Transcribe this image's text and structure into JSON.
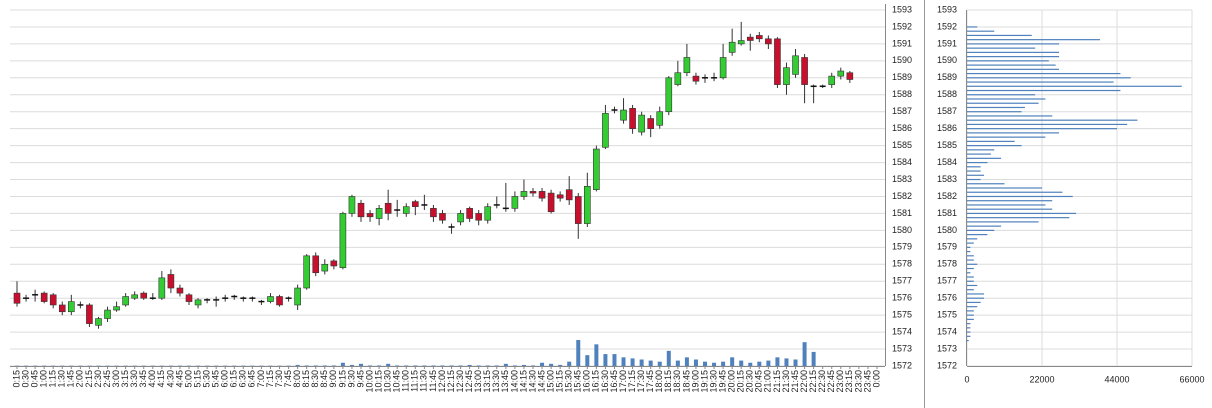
{
  "chart_data": [
    {
      "type": "candlestick",
      "x": [
        "0:15",
        "0:30",
        "0:45",
        "1:00",
        "1:15",
        "1:30",
        "1:45",
        "2:00",
        "2:15",
        "2:30",
        "2:45",
        "3:00",
        "3:15",
        "3:30",
        "3:45",
        "4:00",
        "4:15",
        "4:30",
        "4:45",
        "5:00",
        "5:15",
        "5:30",
        "5:45",
        "6:00",
        "6:15",
        "6:30",
        "6:45",
        "7:00",
        "7:15",
        "7:30",
        "7:45",
        "8:00",
        "8:15",
        "8:30",
        "8:45",
        "9:00",
        "9:15",
        "9:30",
        "9:45",
        "10:00",
        "10:15",
        "10:30",
        "10:45",
        "11:00",
        "11:15",
        "11:30",
        "11:45",
        "12:00",
        "12:15",
        "12:30",
        "12:45",
        "13:00",
        "13:15",
        "13:30",
        "13:45",
        "14:00",
        "14:15",
        "14:30",
        "14:45",
        "15:00",
        "15:15",
        "15:30",
        "15:45",
        "16:00",
        "16:15",
        "16:30",
        "16:45",
        "17:00",
        "17:15",
        "17:30",
        "17:45",
        "18:00",
        "18:15",
        "18:30",
        "18:45",
        "19:00",
        "19:15",
        "19:30",
        "19:45",
        "20:00",
        "20:15",
        "20:30",
        "20:45",
        "21:00",
        "21:15",
        "21:30",
        "21:45",
        "22:00",
        "22:15",
        "22:30",
        "22:45",
        "23:00",
        "23:15",
        "23:30",
        "23:45",
        "0:00"
      ],
      "open": [
        1576.3,
        1576,
        1576.2,
        1576.3,
        1576.2,
        1575.6,
        1575.2,
        1575.6,
        1575.6,
        1574.4,
        1574.8,
        1575.3,
        1575.6,
        1576,
        1576.3,
        1576,
        1576,
        1577.4,
        1576.6,
        1576.2,
        1575.6,
        1575.9,
        1575.9,
        1576,
        1576.1,
        1576,
        1576,
        1575.8,
        1575.8,
        1576.1,
        1576,
        1575.6,
        1576.6,
        1578.5,
        1577.6,
        1578.2,
        1577.8,
        1581,
        1581.6,
        1581,
        1580.7,
        1581.6,
        1581.2,
        1581,
        1581.7,
        1581.5,
        1581.3,
        1581,
        1580.2,
        1580.5,
        1581.3,
        1581,
        1580.6,
        1581.5,
        1581.3,
        1581.3,
        1582,
        1582.3,
        1582.3,
        1582.2,
        1582.1,
        1582.4,
        1582,
        1580.4,
        1582.4,
        1584.9,
        1587.1,
        1586.5,
        1587.2,
        1585.8,
        1586.6,
        1586.2,
        1587,
        1588.6,
        1589.3,
        1589.1,
        1589,
        1589,
        1589,
        1590.5,
        1591,
        1591.4,
        1591.5,
        1591.3,
        1591.3,
        1588.6,
        1589.2,
        1590.2,
        1588.5,
        1588.5,
        1588.6,
        1589.1,
        1589.3,
        null,
        null,
        null
      ],
      "high": [
        1577,
        1576.2,
        1576.5,
        1576.4,
        1576.3,
        1575.8,
        1576.2,
        1575.8,
        1575.7,
        1574.9,
        1575.5,
        1575.8,
        1576.3,
        1576.4,
        1576.4,
        1576.3,
        1577.6,
        1577.7,
        1576.8,
        1576.3,
        1576,
        1576,
        1576.1,
        1576.2,
        1576.2,
        1576.1,
        1576.1,
        1575.9,
        1576.3,
        1576.2,
        1576.1,
        1576.8,
        1578.6,
        1578.7,
        1578.3,
        1578.3,
        1581.1,
        1582.1,
        1581.8,
        1581.2,
        1581.5,
        1582.4,
        1581.8,
        1581.6,
        1581.8,
        1582.1,
        1581.5,
        1581.2,
        1580.4,
        1581.2,
        1581.4,
        1581.2,
        1581.6,
        1582,
        1582.8,
        1582.3,
        1583,
        1582.5,
        1582.5,
        1582.4,
        1582.3,
        1583.2,
        1582.2,
        1583.4,
        1585,
        1587.4,
        1587.3,
        1587.8,
        1587.4,
        1587,
        1586.8,
        1587.3,
        1589.1,
        1590,
        1591,
        1589.3,
        1589.2,
        1589.3,
        1591,
        1591.9,
        1592.3,
        1591.6,
        1591.7,
        1591.5,
        1591.4,
        1589.9,
        1590.7,
        1590.4,
        1588.6,
        1588.6,
        1589.3,
        1589.6,
        1589.4,
        null,
        null,
        null
      ],
      "low": [
        1575.5,
        1575.8,
        1575.8,
        1575.7,
        1575.4,
        1575,
        1575,
        1575.4,
        1574.3,
        1574.2,
        1574.6,
        1575.2,
        1575.5,
        1575.9,
        1575.9,
        1575.9,
        1575.9,
        1576.3,
        1576.1,
        1575.6,
        1575.4,
        1575.7,
        1575.5,
        1575.8,
        1575.9,
        1575.8,
        1575.8,
        1575.6,
        1575.7,
        1575.5,
        1575.8,
        1575.3,
        1576.5,
        1577.3,
        1577.4,
        1577.7,
        1577.7,
        1580.8,
        1580.5,
        1580.5,
        1580.3,
        1580.6,
        1580.8,
        1580.8,
        1580.9,
        1581.2,
        1580.5,
        1580.4,
        1579.8,
        1580.3,
        1580.5,
        1580.3,
        1580.4,
        1581.3,
        1581.1,
        1581.1,
        1581.8,
        1582,
        1581.7,
        1581,
        1581.7,
        1581.5,
        1579.5,
        1580.2,
        1582.3,
        1584.8,
        1586.9,
        1586.3,
        1585.7,
        1585.6,
        1585.5,
        1586,
        1586.8,
        1588.5,
        1589.1,
        1588.6,
        1588.7,
        1588.8,
        1588.9,
        1590.3,
        1590.9,
        1590.6,
        1591.1,
        1590.7,
        1588.4,
        1588,
        1589,
        1587.5,
        1587.5,
        1588.4,
        1588.4,
        1588.9,
        1588.7,
        null,
        null,
        null
      ],
      "close": [
        1575.7,
        1576,
        1576.2,
        1575.8,
        1575.6,
        1575.2,
        1575.8,
        1575.6,
        1574.5,
        1574.8,
        1575.3,
        1575.5,
        1576.1,
        1576.2,
        1576,
        1576,
        1577.2,
        1576.6,
        1576.3,
        1575.8,
        1575.9,
        1575.9,
        1575.9,
        1576,
        1576.1,
        1576,
        1576,
        1575.8,
        1576.1,
        1575.6,
        1576,
        1576.6,
        1578.5,
        1577.5,
        1578,
        1577.9,
        1581,
        1582,
        1580.8,
        1580.8,
        1581.3,
        1581,
        1581.2,
        1581.4,
        1581.4,
        1581.5,
        1580.8,
        1580.6,
        1580.2,
        1581,
        1580.7,
        1580.6,
        1581.4,
        1581.5,
        1581.3,
        1582,
        1582.3,
        1582.2,
        1581.9,
        1581.1,
        1581.9,
        1581.8,
        1580.4,
        1582.6,
        1584.8,
        1586.9,
        1587.1,
        1587.1,
        1586,
        1586.8,
        1586,
        1587,
        1589,
        1589.3,
        1590.2,
        1588.8,
        1589,
        1589,
        1590.2,
        1591.1,
        1591.2,
        1591.2,
        1591.3,
        1591,
        1588.6,
        1589.6,
        1590.3,
        1588.6,
        1588.5,
        1588.5,
        1589.1,
        1589.4,
        1588.9,
        null,
        null,
        null
      ],
      "volume": [
        0.3,
        0.3,
        0.3,
        0.3,
        0.3,
        0.3,
        0.3,
        0.3,
        0.3,
        0.3,
        0.3,
        0.3,
        0.3,
        0.3,
        0.3,
        0.3,
        0.3,
        0.3,
        0.3,
        0.3,
        0.3,
        0.3,
        0.3,
        0.3,
        0.3,
        0.3,
        0.3,
        0.3,
        0.3,
        0.3,
        0.3,
        1,
        0.5,
        0.5,
        0.5,
        0.5,
        3,
        1,
        2,
        0.5,
        0.5,
        2,
        0.5,
        0.5,
        0.5,
        0.5,
        0.5,
        0.5,
        0.5,
        0.5,
        1,
        0.5,
        0.5,
        0.5,
        2,
        0.5,
        1,
        0.5,
        3,
        2,
        1,
        4,
        24,
        10,
        20,
        11,
        11,
        8,
        7,
        6,
        5,
        4,
        14,
        5,
        8,
        6,
        4,
        3,
        4,
        8,
        5,
        3,
        4,
        5,
        8,
        7,
        6,
        22,
        13,
        null,
        null,
        null,
        null,
        null,
        null,
        null
      ],
      "ylim": [
        1572,
        1593
      ],
      "yticks": [
        1572,
        1573,
        1574,
        1575,
        1576,
        1577,
        1578,
        1579,
        1580,
        1581,
        1582,
        1583,
        1584,
        1585,
        1586,
        1587,
        1588,
        1589,
        1590,
        1591,
        1592,
        1593
      ],
      "grid": true,
      "up_color": "#33cc33",
      "down_color": "#c8102e",
      "volume_color": "#4f81bd"
    },
    {
      "type": "hbar",
      "y": [
        1592,
        1591.75,
        1591.5,
        1591.25,
        1591,
        1590.75,
        1590.5,
        1590.25,
        1590,
        1589.75,
        1589.5,
        1589.25,
        1589,
        1588.75,
        1588.5,
        1588.25,
        1588,
        1587.75,
        1587.5,
        1587.25,
        1587,
        1586.75,
        1586.5,
        1586.25,
        1586,
        1585.75,
        1585.5,
        1585.25,
        1585,
        1584.75,
        1584.5,
        1584.25,
        1584,
        1583.75,
        1583.5,
        1583.25,
        1583,
        1582.75,
        1582.5,
        1582.25,
        1582,
        1581.75,
        1581.5,
        1581.25,
        1581,
        1580.75,
        1580.5,
        1580.25,
        1580,
        1579.75,
        1579.5,
        1579.25,
        1579,
        1578.75,
        1578.5,
        1578.25,
        1578,
        1577.75,
        1577.5,
        1577.25,
        1577,
        1576.75,
        1576.5,
        1576.25,
        1576,
        1575.75,
        1575.5,
        1575.25,
        1575,
        1574.75,
        1574.5,
        1574.25,
        1574,
        1573.75,
        1573.5
      ],
      "values": [
        3000,
        8000,
        19000,
        39000,
        27000,
        20000,
        27000,
        27000,
        24000,
        26000,
        27000,
        45000,
        48000,
        43000,
        63000,
        45000,
        20000,
        23000,
        21000,
        17000,
        16000,
        25000,
        50000,
        47000,
        44000,
        27000,
        23000,
        14000,
        16000,
        8000,
        7000,
        10000,
        6000,
        4000,
        4000,
        5000,
        4000,
        11000,
        22000,
        28000,
        31000,
        25000,
        23000,
        25000,
        32000,
        30000,
        21000,
        10000,
        8000,
        6000,
        3000,
        2000,
        1000,
        1000,
        2000,
        2000,
        3000,
        2000,
        1000,
        2000,
        2000,
        3000,
        2000,
        5000,
        5000,
        4000,
        3000,
        2000,
        2000,
        2000,
        1000,
        1000,
        1000,
        1000,
        500
      ],
      "color": "#4f81bd",
      "xlim": [
        0,
        66000
      ],
      "xticks": [
        0,
        22000,
        44000,
        66000
      ],
      "ylim": [
        1572,
        1593
      ],
      "yticks": [
        1572,
        1573,
        1574,
        1575,
        1576,
        1577,
        1578,
        1579,
        1580,
        1581,
        1582,
        1583,
        1584,
        1585,
        1586,
        1587,
        1588,
        1589,
        1590,
        1591,
        1592,
        1593
      ],
      "grid": true
    }
  ]
}
